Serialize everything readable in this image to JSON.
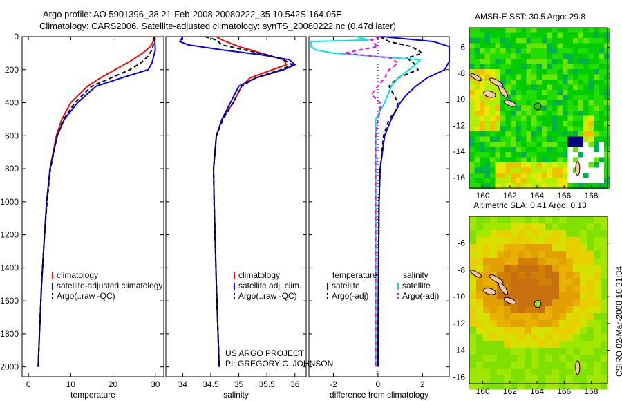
{
  "title_line1": "Argo profile: AO 5901396_38 21-Feb-2008 20080222_35 10.542S 164.05E",
  "title_line2": "Climatology: CARS2006. Satellite-adjusted climatology: synTS_20080222.nc (0.47d later)",
  "credit_line1": "US ARGO PROJECT",
  "credit_line2": "PI: GREGORY C. JOHNSON",
  "side_stamp": "CSIRO 02-Mar-2008 10:31:34",
  "colors": {
    "climatology": "#ff0000",
    "satellite": "#0000ff",
    "argo": "#000000",
    "satellite_sal": "#00e5e5",
    "argo_sal": "#ff00ff"
  },
  "chart_data": [
    {
      "type": "line",
      "xlabel": "temperature",
      "ylabel": "",
      "xlim": [
        -1.5,
        32
      ],
      "ylim": [
        2060,
        0
      ],
      "xticks": [
        "0",
        "10",
        "20",
        "30"
      ],
      "xtickvals": [
        0,
        10,
        20,
        30
      ],
      "yticks": [
        "0",
        "200",
        "400",
        "600",
        "800",
        "1000",
        "1200",
        "1400",
        "1600",
        "1800",
        "2000"
      ],
      "ytickvals": [
        0,
        200,
        400,
        600,
        800,
        1000,
        1200,
        1400,
        1600,
        1800,
        2000
      ],
      "legend": [
        "climatology",
        "satellite-adjusted climatology",
        "Argo(..raw -QC)"
      ],
      "series": [
        {
          "name": "climatology",
          "color": "#ff0000",
          "dash": false,
          "depth": [
            0,
            30,
            60,
            100,
            150,
            200,
            250,
            300,
            400,
            500,
            600,
            800,
            1000,
            1200,
            1500,
            1800,
            2000
          ],
          "values": [
            29.6,
            29.5,
            28.8,
            27,
            24,
            20.5,
            17,
            14,
            10,
            7.9,
            6.6,
            5.1,
            4.3,
            3.8,
            3.1,
            2.6,
            2.3
          ]
        },
        {
          "name": "satellite-adjusted climatology",
          "color": "#0000ff",
          "dash": false,
          "depth": [
            0,
            40,
            80,
            120,
            160,
            200,
            250,
            300,
            400,
            500,
            600,
            800,
            1000,
            1200,
            1500,
            1800,
            2000
          ],
          "values": [
            29.8,
            29.9,
            30,
            29.6,
            29.2,
            28.3,
            22,
            16,
            11.6,
            8.5,
            6.8,
            5.1,
            4.3,
            3.8,
            3.1,
            2.6,
            2.3
          ]
        },
        {
          "name": "Argo(..raw -QC)",
          "color": "#000000",
          "dash": true,
          "depth": [
            0,
            40,
            80,
            120,
            160,
            200,
            250,
            300,
            400,
            500,
            600,
            800,
            1000,
            1200,
            1500,
            1800,
            2000
          ],
          "values": [
            29.8,
            29.6,
            29.2,
            28.2,
            26.5,
            24,
            19.5,
            15,
            11,
            8.3,
            6.8,
            5.2,
            4.4,
            3.8,
            3.1,
            2.6,
            2.3
          ]
        }
      ]
    },
    {
      "type": "line",
      "xlabel": "salinity",
      "xlim": [
        33.7,
        36.2
      ],
      "ylim": [
        2060,
        0
      ],
      "xticks": [
        "34",
        "34.5",
        "35",
        "35.5",
        "36"
      ],
      "xtickvals": [
        34,
        34.5,
        35,
        35.5,
        36
      ],
      "legend": [
        "climatology",
        "satellite adj. clim.",
        "Argo(..raw -QC)"
      ],
      "series": [
        {
          "name": "climatology",
          "color": "#ff0000",
          "dash": false,
          "depth": [
            0,
            20,
            60,
            100,
            140,
            170,
            200,
            250,
            300,
            400,
            500,
            600,
            800,
            1000,
            1500,
            2000
          ],
          "values": [
            34.6,
            34.7,
            35.0,
            35.4,
            35.8,
            35.85,
            35.6,
            35.2,
            35.05,
            34.9,
            34.7,
            34.6,
            34.55,
            34.56,
            34.6,
            34.65
          ]
        },
        {
          "name": "satellite adj. clim.",
          "color": "#0000ff",
          "dash": false,
          "depth": [
            0,
            30,
            50,
            80,
            110,
            140,
            170,
            200,
            250,
            300,
            400,
            500,
            600,
            800,
            1000,
            1500,
            2000
          ],
          "values": [
            34.0,
            33.95,
            34.1,
            34.7,
            35.4,
            35.9,
            36.0,
            35.8,
            35.3,
            35.0,
            34.85,
            34.7,
            34.6,
            34.55,
            34.56,
            34.6,
            34.65
          ]
        },
        {
          "name": "Argo(..raw -QC)",
          "color": "#000000",
          "dash": true,
          "depth": [
            0,
            20,
            50,
            80,
            110,
            140,
            170,
            200,
            250,
            300,
            400,
            500,
            600,
            800,
            1000,
            1500,
            2000
          ],
          "values": [
            34.4,
            34.6,
            34.7,
            35.1,
            35.5,
            35.8,
            35.95,
            35.75,
            35.3,
            35.05,
            34.9,
            34.72,
            34.6,
            34.55,
            34.56,
            34.6,
            34.65
          ]
        }
      ]
    },
    {
      "type": "line",
      "xlabel": "difference from climatology",
      "xlim": [
        -3.1,
        3.2
      ],
      "ylim": [
        2060,
        0
      ],
      "xticks": [
        "-2",
        "0",
        "2"
      ],
      "xtickvals": [
        -2,
        0,
        2
      ],
      "legend_titles": [
        "temperature",
        "salinity"
      ],
      "legend": [
        "satellite",
        "Argo(-adj)",
        "satellite",
        "Argo(-adj)"
      ],
      "series": [
        {
          "name": "temperature satellite",
          "color": "#0000ff",
          "dash": false,
          "depth": [
            0,
            30,
            60,
            100,
            150,
            200,
            250,
            300,
            350,
            400,
            500,
            600,
            800,
            1000,
            1500,
            2000
          ],
          "values": [
            0.2,
            2.5,
            3.2,
            3.2,
            3.2,
            3.0,
            2.2,
            1.7,
            1.3,
            1.0,
            0.6,
            0.3,
            0.1,
            0.05,
            0.02,
            0.0
          ]
        },
        {
          "name": "temperature Argo(-adj)",
          "color": "#000000",
          "dash": true,
          "depth": [
            0,
            30,
            60,
            100,
            130,
            160,
            200,
            250,
            300,
            350,
            400,
            450,
            500,
            600,
            800,
            1000,
            1500,
            2000
          ],
          "values": [
            0.1,
            0.5,
            1.5,
            2.0,
            1.3,
            1.6,
            1.8,
            0.9,
            0.5,
            0.7,
            0.9,
            0.8,
            0.5,
            0.25,
            0.1,
            0.05,
            0.02,
            0.0
          ]
        },
        {
          "name": "salinity satellite",
          "color": "#00e5e5",
          "dash": false,
          "depth": [
            0,
            20,
            30,
            60,
            80,
            100,
            140,
            180,
            250,
            300,
            400,
            500,
            600,
            800,
            1000,
            1500,
            2000
          ],
          "values": [
            -1,
            -0.4,
            -3,
            -3,
            -2.8,
            -2.0,
            1.9,
            1.6,
            0.9,
            0.6,
            0.3,
            -0.1,
            -0.1,
            -0.1,
            -0.1,
            -0.1,
            -0.1
          ]
        },
        {
          "name": "salinity Argo(-adj)",
          "color": "#ff00ff",
          "dash": true,
          "depth": [
            0,
            20,
            40,
            60,
            80,
            100,
            130,
            160,
            200,
            250,
            300,
            350,
            400,
            450,
            500,
            600,
            800,
            1000,
            1500,
            2000
          ],
          "values": [
            0.1,
            -0.3,
            -0.2,
            0.0,
            -0.8,
            -1.5,
            0.6,
            0.9,
            0.5,
            0.3,
            0.0,
            -0.3,
            0.1,
            0.1,
            0.0,
            -0.1,
            -0.1,
            -0.1,
            -0.1,
            -0.1
          ]
        }
      ]
    },
    {
      "type": "heatmap",
      "title": "AMSR-E SST: 30.5 Argo: 29.8",
      "xlim": [
        159,
        169.2
      ],
      "ylim": [
        -16.8,
        -4.5
      ],
      "xticks": [
        "160",
        "162",
        "164",
        "166",
        "168"
      ],
      "xtickvals": [
        160,
        162,
        164,
        166,
        168
      ],
      "yticks": [
        "-6",
        "-8",
        "-10",
        "-12",
        "-14",
        "-16"
      ],
      "ytickvals": [
        -6,
        -8,
        -10,
        -12,
        -14,
        -16
      ],
      "marker": {
        "lon": 164.05,
        "lat": -10.54
      }
    },
    {
      "type": "heatmap",
      "title": "Altimetric SLA: 0.41 Argo: 0.13",
      "xlim": [
        159,
        169.2
      ],
      "ylim": [
        -16.5,
        -4
      ],
      "xticks": [
        "160",
        "162",
        "164",
        "166",
        "168"
      ],
      "xtickvals": [
        160,
        162,
        164,
        166,
        168
      ],
      "yticks": [
        "-6",
        "-8",
        "-10",
        "-12",
        "-14",
        "-16"
      ],
      "ytickvals": [
        -6,
        -8,
        -10,
        -12,
        -14,
        -16
      ],
      "marker": {
        "lon": 164.05,
        "lat": -10.54
      }
    }
  ]
}
